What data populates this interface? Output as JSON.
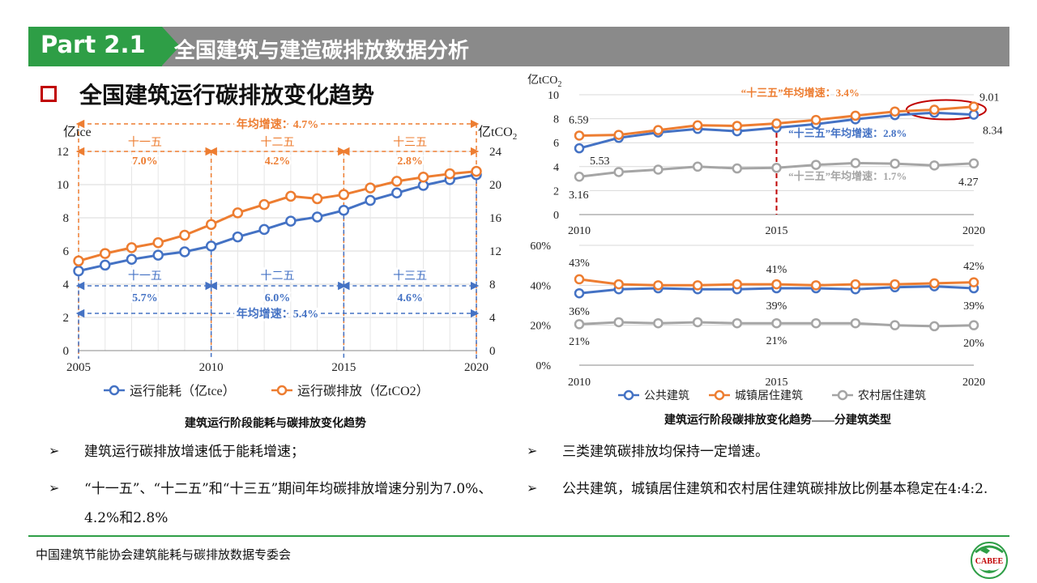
{
  "header": {
    "part": "Part 2.1",
    "title": "全国建筑与建造碳排放数据分析"
  },
  "section": {
    "title": "全国建筑运行碳排放变化趋势"
  },
  "left_chart": {
    "caption": "建筑运行阶段能耗与碳排放变化趋势",
    "y_left_unit": "亿tce",
    "y_right_unit": "亿tCO",
    "y_right_unit_sub": "2",
    "overall_carbon": "年均增速：4.7%",
    "overall_energy": "年均增速：5.4%",
    "periods": [
      "十一五",
      "十二五",
      "十三五"
    ],
    "carbon_rates": [
      "7.0%",
      "4.2%",
      "2.8%"
    ],
    "energy_rates": [
      "5.7%",
      "6.0%",
      "4.6%"
    ],
    "legend_energy": "运行能耗（亿tce）",
    "legend_carbon": "运行碳排放（亿tCO2）"
  },
  "right_top": {
    "unit": "亿tCO",
    "unit_sub": "2",
    "label_2010_top": "6.59",
    "label_2010_bottom": "5.53",
    "label_2010_rural": "3.16",
    "label_2020_urban": "9.01",
    "label_2020_public": "8.34",
    "label_2020_rural": "4.27",
    "ann_urban": "“十三五”年均增速：3.4%",
    "ann_public": "“十三五”年均增速：2.8%",
    "ann_rural": "“十三五”年均增速：1.7%"
  },
  "right_bottom": {
    "caption": "建筑运行阶段碳排放变化趋势——分建筑类型",
    "labels": {
      "urban_2010": "43%",
      "urban_2015": "41%",
      "urban_2020": "42%",
      "public_2010": "36%",
      "public_2015": "39%",
      "public_2020": "39%",
      "rural_2010": "21%",
      "rural_2015": "21%",
      "rural_2020": "20%"
    },
    "legend": [
      "公共建筑",
      "城镇居住建筑",
      "农村居住建筑"
    ]
  },
  "bullets_left": [
    "建筑运行碳排放增速低于能耗增速；",
    "“十一五”、“十二五”和“十三五”期间年均碳排放增速分别为7.0%、4.2%和2.8%"
  ],
  "bullets_right": [
    "三类建筑碳排放均保持一定增速。",
    "公共建筑，城镇居住建筑和农村居住建筑碳排放比例基本稳定在4:4:2."
  ],
  "bullet_mark": "➢",
  "footer": "中国建筑节能协会建筑能耗与碳排放数据专委会",
  "logo": {
    "text": "CABEE",
    "icon": "cabee-globe-logo"
  },
  "colors": {
    "brand_green": "#2e9e46",
    "banner_gray": "#8a8a8a",
    "blue": "#4472c4",
    "orange": "#ed7d31",
    "gray": "#a5a5a5",
    "red": "#c00000"
  },
  "chart_data": [
    {
      "type": "line",
      "title": "建筑运行阶段能耗与碳排放变化趋势",
      "x": [
        2005,
        2006,
        2007,
        2008,
        2009,
        2010,
        2011,
        2012,
        2013,
        2014,
        2015,
        2016,
        2017,
        2018,
        2019,
        2020
      ],
      "xticks": [
        2005,
        2010,
        2015,
        2020
      ],
      "series": [
        {
          "name": "运行能耗（亿tce）",
          "axis": "left",
          "color": "#4472c4",
          "values": [
            4.8,
            5.15,
            5.5,
            5.75,
            5.95,
            6.3,
            6.85,
            7.3,
            7.8,
            8.05,
            8.45,
            9.05,
            9.5,
            9.95,
            10.3,
            10.6
          ]
        },
        {
          "name": "运行碳排放（亿tCO2）",
          "axis": "right",
          "color": "#ed7d31",
          "values": [
            10.8,
            11.7,
            12.4,
            13.0,
            13.9,
            15.2,
            16.6,
            17.6,
            18.6,
            18.3,
            18.8,
            19.6,
            20.4,
            20.9,
            21.3,
            21.6
          ]
        }
      ],
      "yleft": {
        "ylim": [
          0,
          12
        ],
        "ticks": [
          0,
          2,
          4,
          6,
          8,
          10,
          12
        ],
        "label": "亿tce"
      },
      "yright": {
        "ylim": [
          0,
          24
        ],
        "ticks": [
          0,
          4,
          8,
          12,
          16,
          20,
          24
        ],
        "label": "亿tCO2"
      },
      "grid": true,
      "legend": "bottom"
    },
    {
      "type": "line",
      "x": [
        2010,
        2011,
        2012,
        2013,
        2014,
        2015,
        2016,
        2017,
        2018,
        2019,
        2020
      ],
      "xticks": [
        2010,
        2015,
        2020
      ],
      "series": [
        {
          "name": "公共建筑",
          "color": "#4472c4",
          "values": [
            5.53,
            6.4,
            6.85,
            7.15,
            6.95,
            7.25,
            7.55,
            7.95,
            8.3,
            8.5,
            8.34
          ]
        },
        {
          "name": "城镇居住建筑",
          "color": "#ed7d31",
          "values": [
            6.59,
            6.65,
            7.05,
            7.45,
            7.4,
            7.6,
            7.9,
            8.25,
            8.6,
            8.75,
            9.01
          ]
        },
        {
          "name": "农村居住建筑",
          "color": "#a5a5a5",
          "values": [
            3.16,
            3.55,
            3.75,
            4.0,
            3.85,
            3.9,
            4.15,
            4.3,
            4.25,
            4.1,
            4.27
          ]
        }
      ],
      "ylabel": "亿tCO2",
      "ylim": [
        0,
        10
      ],
      "yticks": [
        0,
        2,
        4,
        6,
        8,
        10
      ],
      "grid": true
    },
    {
      "type": "line",
      "x": [
        2010,
        2011,
        2012,
        2013,
        2014,
        2015,
        2016,
        2017,
        2018,
        2019,
        2020
      ],
      "xticks": [
        2010,
        2015,
        2020
      ],
      "series": [
        {
          "name": "公共建筑",
          "color": "#4472c4",
          "values": [
            36,
            38,
            38.5,
            38,
            38,
            38.5,
            38.5,
            38,
            39,
            39.5,
            38.5
          ]
        },
        {
          "name": "城镇居住建筑",
          "color": "#ed7d31",
          "values": [
            43,
            40.5,
            40,
            40,
            40.5,
            40.5,
            40,
            40.5,
            40.5,
            41,
            41.5
          ]
        },
        {
          "name": "农村居住建筑",
          "color": "#a5a5a5",
          "values": [
            20.5,
            21.5,
            21,
            21.5,
            21,
            21,
            21,
            21,
            20,
            19.5,
            20
          ]
        }
      ],
      "ylim": [
        0,
        60
      ],
      "yticks": [
        0,
        20,
        40,
        60
      ],
      "yunit": "%",
      "grid": true,
      "title": "建筑运行阶段碳排放变化趋势——分建筑类型",
      "legend": "bottom"
    }
  ]
}
